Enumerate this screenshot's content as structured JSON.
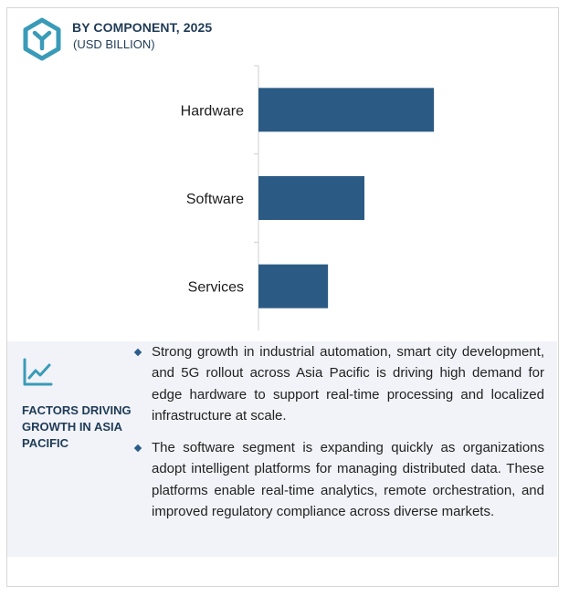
{
  "header": {
    "title": "BY COMPONENT, 2025",
    "subtitle": "(USD BILLION)"
  },
  "colors": {
    "bar": "#2b5b85",
    "title": "#1f3b57",
    "panel_background": "#f1f3f8",
    "accent": "#3a9bb8"
  },
  "icons": {
    "logo": "hexagon-logo-icon",
    "factors": "line-trend-icon",
    "bullet": "diamond-bullet-icon"
  },
  "chart_data": {
    "type": "bar",
    "orientation": "horizontal",
    "title": "BY COMPONENT, 2025",
    "subtitle": "(USD BILLION)",
    "categories": [
      "Hardware",
      "Software",
      "Services"
    ],
    "values": [
      5.3,
      3.2,
      2.1
    ],
    "xlabel": "",
    "ylabel": "",
    "xlim": [
      0,
      8
    ],
    "grid": false,
    "legend": "none",
    "value_labels_shown": false
  },
  "factors": {
    "heading": "FACTORS DRIVING GROWTH IN ASIA PACIFIC",
    "bullets": [
      "Strong growth in industrial automation, smart city development, and 5G rollout across Asia Pacific is driving high demand for edge hardware to support real-time processing and localized infrastructure at scale.",
      "The software segment is expanding quickly as organizations adopt intelligent platforms for managing distributed data. These platforms enable real-time analytics, remote orchestration, and improved regulatory compliance across diverse markets."
    ]
  }
}
